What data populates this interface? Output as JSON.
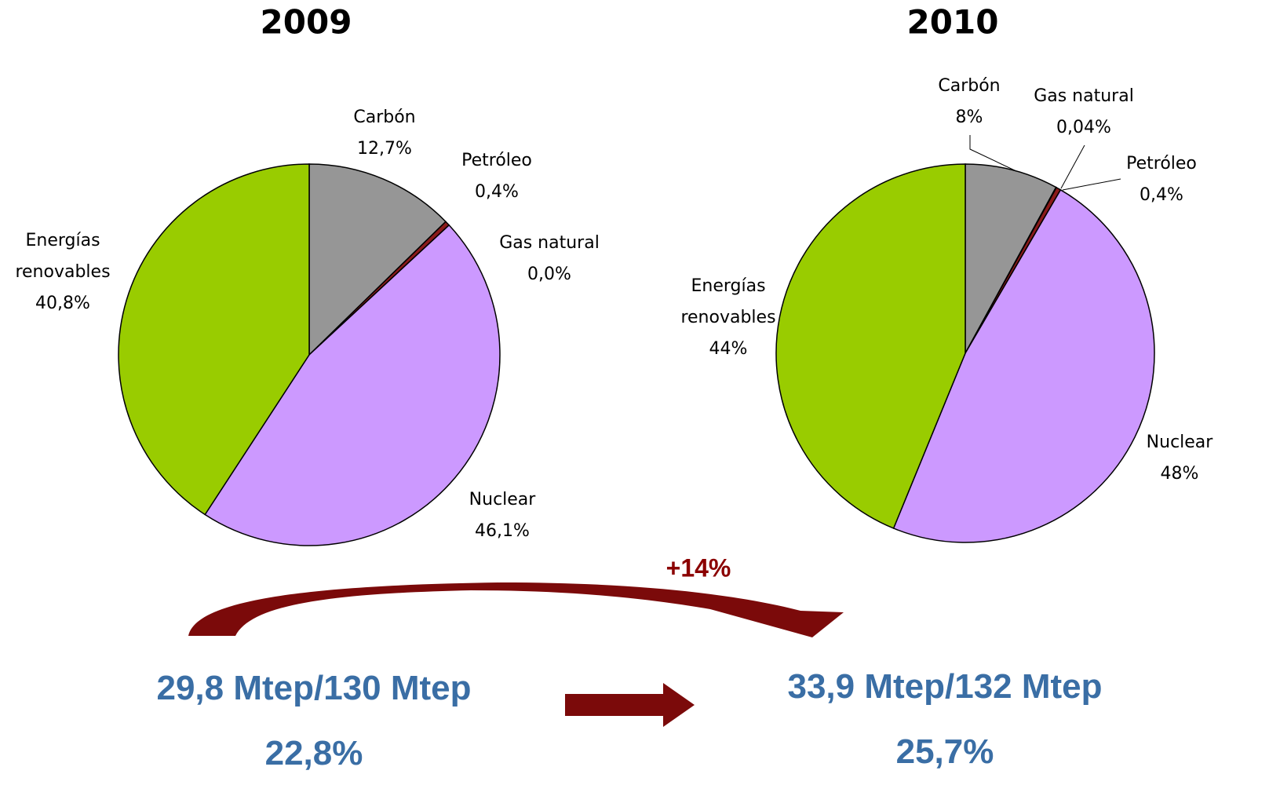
{
  "chart_data": [
    {
      "type": "pie",
      "title": "2009",
      "categories": [
        "Carbón",
        "Petróleo",
        "Gas natural",
        "Nuclear",
        "Energías renovables"
      ],
      "values": [
        12.7,
        0.4,
        0.0,
        46.1,
        40.8
      ],
      "value_labels": [
        "12,7%",
        "0,4%",
        "0,0%",
        "46,1%",
        "40,8%"
      ],
      "colors": [
        "#969696",
        "#8b1a1a",
        "#4f6228",
        "#cc99ff",
        "#99cc00"
      ]
    },
    {
      "type": "pie",
      "title": "2010",
      "categories": [
        "Carbón",
        "Gas natural",
        "Petróleo",
        "Nuclear",
        "Energías renovables"
      ],
      "values": [
        8,
        0.04,
        0.4,
        48,
        44
      ],
      "value_labels": [
        "8%",
        "0,04%",
        "0,4%",
        "48%",
        "44%"
      ],
      "colors": [
        "#969696",
        "#4f6228",
        "#8b1a1a",
        "#cc99ff",
        "#99cc00"
      ]
    }
  ],
  "annotations": {
    "change": "+14%",
    "left_total": "29,8 Mtep/130 Mtep",
    "left_share": "22,8%",
    "right_total": "33,9 Mtep/132 Mtep",
    "right_share": "25,7%"
  }
}
